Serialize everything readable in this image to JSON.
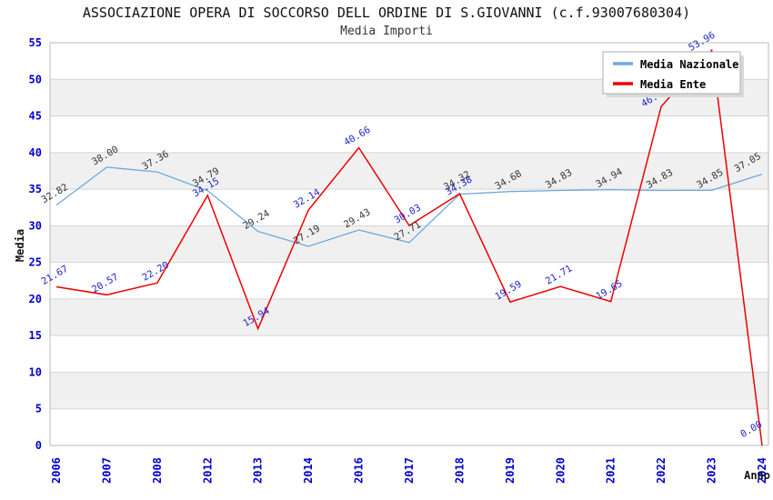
{
  "title": "ASSOCIAZIONE OPERA DI SOCCORSO DELL ORDINE DI S.GIOVANNI (c.f.93007680304)",
  "subtitle": "Media Importi",
  "legend": {
    "position": "top-right",
    "items": [
      {
        "label": "Media Nazionale",
        "color": "#6FA8DC"
      },
      {
        "label": "Media Ente",
        "color": "#EE0000"
      }
    ]
  },
  "axes": {
    "y_title": "Media",
    "x_title": "Anno",
    "y_ticks": [
      "0",
      "5",
      "10",
      "15",
      "20",
      "25",
      "30",
      "35",
      "40",
      "45",
      "50",
      "55"
    ],
    "y_min": 0,
    "y_max": 55
  },
  "colors": {
    "tick_blue": "#0000CC",
    "band_gray": "#F0F0F0",
    "grid_line": "#D6D6D6",
    "plot_border": "#B8B8B8",
    "nazionale_line": "#6FA8DC",
    "ente_line": "#EE0000",
    "nazionale_label": "#333333",
    "ente_label": "#2222CC"
  },
  "chart_data": {
    "type": "line",
    "title": "Media Importi",
    "xlabel": "Anno",
    "ylabel": "Media",
    "ylim": [
      0,
      55
    ],
    "grid": true,
    "background_bands": "alternating 5-unit gray/white stripes",
    "legend_position": "top-right",
    "categories": [
      "2006",
      "2007",
      "2008",
      "2012",
      "2013",
      "2014",
      "2016",
      "2017",
      "2018",
      "2019",
      "2020",
      "2021",
      "2022",
      "2023",
      "2024"
    ],
    "series": [
      {
        "name": "Media Nazionale",
        "color": "#6FA8DC",
        "label_color": "#333333",
        "values": [
          32.82,
          38.0,
          37.36,
          34.79,
          29.24,
          27.19,
          29.43,
          27.71,
          34.32,
          34.68,
          34.83,
          34.94,
          34.83,
          34.85,
          37.05
        ],
        "labels": [
          "32.82",
          "38.00",
          "37.36",
          "34.79",
          "29.24",
          "27.19",
          "29.43",
          "27.71",
          "34.32",
          "34.68",
          "34.83",
          "34.94",
          "34.83",
          "34.85",
          "37.05"
        ]
      },
      {
        "name": "Media Ente",
        "color": "#EE0000",
        "label_color": "#2222CC",
        "values": [
          21.67,
          20.57,
          22.2,
          34.15,
          15.94,
          32.14,
          40.66,
          30.03,
          34.38,
          19.59,
          21.71,
          19.65,
          46.3,
          53.96,
          0.0
        ],
        "labels": [
          "21.67",
          "20.57",
          "22.20",
          "34.15",
          "15.94",
          "32.14",
          "40.66",
          "30.03",
          "34.38",
          "19.59",
          "21.71",
          "19.65",
          "46.",
          "53.96",
          "0.00"
        ]
      }
    ]
  }
}
